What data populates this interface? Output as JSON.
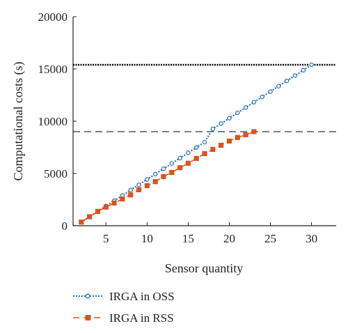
{
  "chart_data": {
    "type": "line",
    "title": "",
    "xlabel": "Sensor quantity",
    "ylabel": "Computational costs (s)",
    "xlim": [
      1,
      33
    ],
    "ylim": [
      0,
      20000
    ],
    "xticks": [
      5,
      10,
      15,
      20,
      25,
      30
    ],
    "yticks": [
      0,
      5000,
      10000,
      15000,
      20000
    ],
    "grid": false,
    "legend_position": "bottom-left, below plot",
    "series": [
      {
        "name": "IRGA in OSS",
        "color": "#2e75b6",
        "line_style": "dotted",
        "marker": "open-circle",
        "x": [
          2,
          3,
          4,
          5,
          6,
          7,
          8,
          9,
          10,
          11,
          12,
          13,
          14,
          15,
          16,
          17,
          18,
          19,
          20,
          21,
          22,
          23,
          24,
          25,
          26,
          27,
          28,
          29,
          30
        ],
        "values": [
          350,
          860,
          1370,
          1880,
          2390,
          2900,
          3410,
          3920,
          4430,
          4940,
          5450,
          5960,
          6470,
          6980,
          7490,
          8000,
          9270,
          9780,
          10290,
          10800,
          11310,
          11820,
          12330,
          12840,
          13350,
          13860,
          14370,
          14880,
          15400
        ]
      },
      {
        "name": "IRGA in RSS",
        "color": "#d9541f",
        "line_style": "dashed",
        "marker": "filled-square",
        "x": [
          2,
          3,
          4,
          5,
          6,
          7,
          8,
          9,
          10,
          11,
          12,
          13,
          14,
          15,
          16,
          17,
          18,
          19,
          20,
          21,
          22,
          23
        ],
        "values": [
          350,
          860,
          1370,
          1780,
          2170,
          2560,
          2950,
          3440,
          3830,
          4220,
          4700,
          5100,
          5550,
          5980,
          6440,
          6900,
          7300,
          7700,
          8100,
          8440,
          8700,
          9000
        ]
      }
    ],
    "reference_lines": [
      {
        "y": 15400,
        "style": "dotted",
        "color": "#000000"
      },
      {
        "y": 9000,
        "style": "dashed",
        "color": "#333333"
      }
    ]
  }
}
